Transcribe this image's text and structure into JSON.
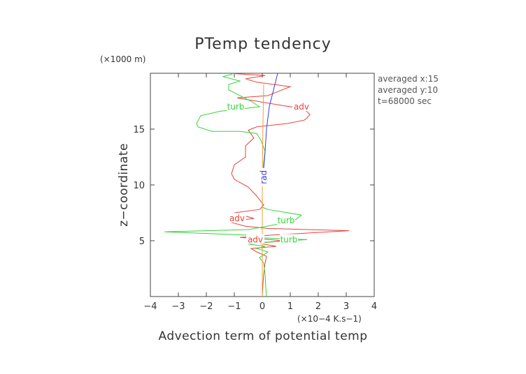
{
  "chart_data": {
    "type": "line",
    "title": "PTemp tendency",
    "y_unit": "(×1000 m)",
    "x_unit": "(×10−4 K.s−1)",
    "xlabel": "Advection term of potential temp",
    "ylabel": "z−coordinate",
    "xlim": [
      -4,
      4
    ],
    "ylim": [
      0,
      20
    ],
    "x_ticks": [
      -4,
      -3,
      -2,
      -1,
      0,
      1,
      2,
      3,
      4
    ],
    "x_tick_labels": [
      "−4",
      "−3",
      "−2",
      "−1",
      "0",
      "1",
      "2",
      "3",
      "4"
    ],
    "y_ticks": [
      5,
      10,
      15
    ],
    "y_tick_labels": [
      "5",
      "10",
      "15"
    ],
    "grid": false,
    "annotations": [
      "averaged  x:15",
      "averaged  y:10",
      "t=68000 sec"
    ],
    "series": [
      {
        "name": "adv",
        "color": "#e8423a",
        "points": [
          [
            0.0,
            0.0
          ],
          [
            0.02,
            1.0
          ],
          [
            0.05,
            2.0
          ],
          [
            0.1,
            3.0
          ],
          [
            0.15,
            3.6
          ],
          [
            -0.2,
            4.0
          ],
          [
            -0.4,
            4.3
          ],
          [
            0.5,
            4.5
          ],
          [
            -0.2,
            4.8
          ],
          [
            0.8,
            5.0
          ],
          [
            -0.8,
            5.3
          ],
          [
            0.3,
            5.5
          ],
          [
            3.1,
            5.9
          ],
          [
            0.2,
            6.1
          ],
          [
            -0.6,
            6.3
          ],
          [
            -1.2,
            6.7
          ],
          [
            -0.3,
            7.0
          ],
          [
            -1.0,
            7.5
          ],
          [
            -0.1,
            7.8
          ],
          [
            0.05,
            8.2
          ],
          [
            -0.2,
            9.0
          ],
          [
            -0.5,
            9.8
          ],
          [
            -1.0,
            10.5
          ],
          [
            -1.1,
            11.0
          ],
          [
            -1.0,
            11.8
          ],
          [
            -0.6,
            12.5
          ],
          [
            -0.6,
            13.5
          ],
          [
            -0.3,
            14.2
          ],
          [
            -0.5,
            14.9
          ],
          [
            -0.2,
            15.2
          ],
          [
            0.9,
            15.5
          ],
          [
            1.5,
            15.8
          ],
          [
            1.6,
            16.0
          ],
          [
            1.7,
            16.3
          ],
          [
            1.5,
            16.8
          ],
          [
            0.5,
            17.2
          ],
          [
            -0.2,
            17.5
          ],
          [
            -0.9,
            17.8
          ],
          [
            0.2,
            18.0
          ],
          [
            0.5,
            18.3
          ],
          [
            1.0,
            18.8
          ],
          [
            -0.2,
            19.2
          ],
          [
            -0.6,
            19.5
          ],
          [
            0.1,
            19.8
          ],
          [
            -1.2,
            20.0
          ]
        ]
      },
      {
        "name": "turb",
        "color": "#33d43a",
        "points": [
          [
            0.15,
            0.0
          ],
          [
            0.12,
            1.0
          ],
          [
            0.1,
            2.0
          ],
          [
            0.05,
            3.0
          ],
          [
            -0.1,
            3.5
          ],
          [
            0.2,
            4.0
          ],
          [
            -0.2,
            4.3
          ],
          [
            0.1,
            4.5
          ],
          [
            -0.5,
            4.7
          ],
          [
            0.4,
            4.9
          ],
          [
            1.6,
            5.1
          ],
          [
            -0.4,
            5.3
          ],
          [
            -0.5,
            5.5
          ],
          [
            -3.5,
            5.8
          ],
          [
            -0.5,
            6.0
          ],
          [
            0.6,
            6.5
          ],
          [
            1.1,
            6.7
          ],
          [
            1.4,
            7.3
          ],
          [
            0.2,
            7.8
          ],
          [
            0.0,
            8.0
          ],
          [
            0.0,
            9.0
          ],
          [
            0.0,
            10.0
          ],
          [
            0.05,
            12.0
          ],
          [
            0.1,
            13.0
          ],
          [
            -0.05,
            14.0
          ],
          [
            -0.2,
            14.6
          ],
          [
            -0.8,
            14.8
          ],
          [
            -1.8,
            14.8
          ],
          [
            -2.3,
            15.2
          ],
          [
            -2.35,
            15.5
          ],
          [
            -2.2,
            16.2
          ],
          [
            -1.5,
            16.6
          ],
          [
            -0.8,
            16.8
          ],
          [
            -0.1,
            17.0
          ],
          [
            -0.4,
            17.5
          ],
          [
            -1.2,
            18.5
          ],
          [
            -1.2,
            19.0
          ],
          [
            -0.8,
            19.3
          ],
          [
            -1.4,
            19.7
          ],
          [
            -1.0,
            20.0
          ]
        ]
      },
      {
        "name": "rad",
        "color": "#3b3bd6",
        "points": [
          [
            0.0,
            0.0
          ],
          [
            0.0,
            5.0
          ],
          [
            0.0,
            10.0
          ],
          [
            0.1,
            13.0
          ],
          [
            0.15,
            15.0
          ],
          [
            0.25,
            17.0
          ],
          [
            0.4,
            18.5
          ],
          [
            0.55,
            20.0
          ]
        ]
      },
      {
        "name": "",
        "color": "#f0a030",
        "points": [
          [
            0.0,
            0.0
          ],
          [
            0.0,
            10.0
          ],
          [
            0.02,
            15.0
          ],
          [
            0.05,
            19.0
          ]
        ]
      }
    ],
    "curve_labels": [
      {
        "text": "adv",
        "x": 1.4,
        "y": 17.0,
        "color": "#e8423a"
      },
      {
        "text": "turb",
        "x": -0.95,
        "y": 17.0,
        "color": "#33d43a"
      },
      {
        "text": "rad",
        "x": 0.05,
        "y": 10.7,
        "color": "#3b3bd6"
      },
      {
        "text": "adv",
        "x": -0.9,
        "y": 7.0,
        "color": "#e8423a"
      },
      {
        "text": "turb",
        "x": 0.85,
        "y": 6.8,
        "color": "#33d43a"
      },
      {
        "text": "adv",
        "x": -0.25,
        "y": 5.1,
        "color": "#e8423a"
      },
      {
        "text": "turb",
        "x": 0.95,
        "y": 5.1,
        "color": "#33d43a"
      }
    ]
  }
}
